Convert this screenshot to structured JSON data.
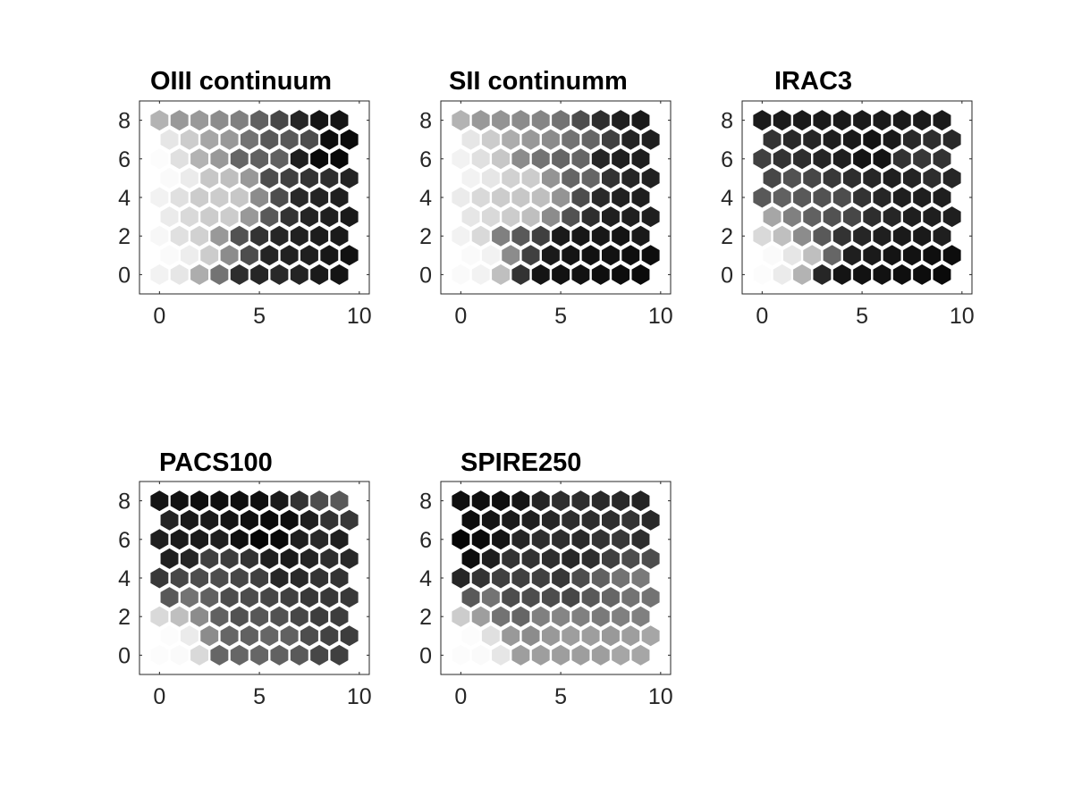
{
  "chart_data": [
    {
      "type": "heatmap",
      "title": "OIII continuum",
      "xlim": [
        -1,
        10.5
      ],
      "ylim": [
        -1,
        9
      ],
      "xticks": [
        0,
        5,
        10
      ],
      "yticks": [
        0,
        2,
        4,
        6,
        8
      ],
      "grid": "off",
      "value_scale": "gray level 0 (black) to 1 (white)",
      "hex_rows": [
        [
          0.95,
          0.9,
          0.68,
          0.45,
          0.18,
          0.15,
          0.16,
          0.14,
          0.1,
          0.08
        ],
        [
          0.98,
          0.93,
          0.8,
          0.55,
          0.3,
          0.14,
          0.13,
          0.12,
          0.09,
          0.07
        ],
        [
          0.97,
          0.88,
          0.82,
          0.6,
          0.32,
          0.2,
          0.15,
          0.13,
          0.11,
          0.1
        ],
        [
          0.92,
          0.85,
          0.8,
          0.8,
          0.6,
          0.35,
          0.2,
          0.14,
          0.12,
          0.1
        ],
        [
          0.95,
          0.88,
          0.8,
          0.8,
          0.78,
          0.55,
          0.3,
          0.16,
          0.14,
          0.12
        ],
        [
          0.98,
          0.92,
          0.78,
          0.75,
          0.6,
          0.3,
          0.25,
          0.2,
          0.18,
          0.14
        ],
        [
          0.99,
          0.88,
          0.7,
          0.6,
          0.4,
          0.38,
          0.38,
          0.12,
          0.04,
          0.03
        ],
        [
          0.9,
          0.8,
          0.65,
          0.6,
          0.45,
          0.35,
          0.35,
          0.3,
          0.05,
          0.04
        ],
        [
          0.7,
          0.6,
          0.6,
          0.55,
          0.5,
          0.38,
          0.28,
          0.15,
          0.08,
          0.08
        ]
      ]
    },
    {
      "type": "heatmap",
      "title": "SII continumm",
      "xlim": [
        -1,
        10.5
      ],
      "ylim": [
        -1,
        9
      ],
      "xticks": [
        0,
        5,
        10
      ],
      "yticks": [
        0,
        2,
        4,
        6,
        8
      ],
      "grid": "off",
      "value_scale": "gray level 0 (black) to 1 (white)",
      "hex_rows": [
        [
          0.98,
          0.95,
          0.75,
          0.2,
          0.08,
          0.07,
          0.07,
          0.06,
          0.05,
          0.04
        ],
        [
          0.98,
          0.95,
          0.55,
          0.25,
          0.1,
          0.08,
          0.07,
          0.07,
          0.06,
          0.05
        ],
        [
          0.95,
          0.85,
          0.5,
          0.35,
          0.25,
          0.1,
          0.09,
          0.09,
          0.08,
          0.1
        ],
        [
          0.9,
          0.85,
          0.8,
          0.75,
          0.55,
          0.32,
          0.18,
          0.12,
          0.12,
          0.12
        ],
        [
          0.92,
          0.85,
          0.8,
          0.78,
          0.75,
          0.58,
          0.3,
          0.16,
          0.13,
          0.12
        ],
        [
          0.95,
          0.9,
          0.82,
          0.8,
          0.58,
          0.4,
          0.4,
          0.2,
          0.15,
          0.13
        ],
        [
          0.95,
          0.88,
          0.78,
          0.55,
          0.45,
          0.4,
          0.4,
          0.15,
          0.12,
          0.12
        ],
        [
          0.9,
          0.8,
          0.68,
          0.6,
          0.55,
          0.45,
          0.4,
          0.25,
          0.14,
          0.12
        ],
        [
          0.7,
          0.6,
          0.58,
          0.55,
          0.52,
          0.45,
          0.3,
          0.18,
          0.12,
          0.1
        ]
      ]
    },
    {
      "type": "heatmap",
      "title": "IRAC3",
      "xlim": [
        -1,
        10.5
      ],
      "ylim": [
        -1,
        9
      ],
      "xticks": [
        0,
        5,
        10
      ],
      "yticks": [
        0,
        2,
        4,
        6,
        8
      ],
      "grid": "off",
      "value_scale": "gray level 0 (black) to 1 (white)",
      "hex_rows": [
        [
          0.99,
          0.92,
          0.7,
          0.15,
          0.08,
          0.07,
          0.07,
          0.06,
          0.05,
          0.04
        ],
        [
          0.98,
          0.9,
          0.75,
          0.4,
          0.12,
          0.1,
          0.08,
          0.07,
          0.06,
          0.05
        ],
        [
          0.85,
          0.75,
          0.55,
          0.35,
          0.2,
          0.15,
          0.12,
          0.1,
          0.1,
          0.12
        ],
        [
          0.65,
          0.5,
          0.38,
          0.32,
          0.28,
          0.18,
          0.15,
          0.12,
          0.12,
          0.12
        ],
        [
          0.35,
          0.38,
          0.35,
          0.32,
          0.3,
          0.2,
          0.15,
          0.12,
          0.12,
          0.12
        ],
        [
          0.28,
          0.32,
          0.28,
          0.22,
          0.18,
          0.15,
          0.12,
          0.14,
          0.18,
          0.15
        ],
        [
          0.25,
          0.2,
          0.18,
          0.15,
          0.12,
          0.08,
          0.08,
          0.2,
          0.22,
          0.2
        ],
        [
          0.2,
          0.16,
          0.15,
          0.12,
          0.1,
          0.08,
          0.1,
          0.16,
          0.18,
          0.16
        ],
        [
          0.1,
          0.1,
          0.1,
          0.1,
          0.1,
          0.1,
          0.1,
          0.1,
          0.1,
          0.1
        ]
      ]
    },
    {
      "type": "heatmap",
      "title": "PACS100",
      "xlim": [
        -1,
        10.5
      ],
      "ylim": [
        -1,
        9
      ],
      "xticks": [
        0,
        5,
        10
      ],
      "yticks": [
        0,
        2,
        4,
        6,
        8
      ],
      "grid": "off",
      "value_scale": "gray level 0 (black) to 1 (white)",
      "hex_rows": [
        [
          0.99,
          0.98,
          0.85,
          0.4,
          0.4,
          0.4,
          0.38,
          0.35,
          0.28,
          0.25
        ],
        [
          0.99,
          0.92,
          0.55,
          0.4,
          0.38,
          0.4,
          0.38,
          0.3,
          0.26,
          0.24
        ],
        [
          0.85,
          0.75,
          0.55,
          0.38,
          0.32,
          0.34,
          0.32,
          0.28,
          0.24,
          0.24
        ],
        [
          0.35,
          0.45,
          0.38,
          0.3,
          0.3,
          0.28,
          0.25,
          0.22,
          0.22,
          0.22
        ],
        [
          0.22,
          0.28,
          0.3,
          0.3,
          0.28,
          0.25,
          0.15,
          0.16,
          0.2,
          0.2
        ],
        [
          0.12,
          0.15,
          0.25,
          0.24,
          0.2,
          0.12,
          0.1,
          0.14,
          0.18,
          0.16
        ],
        [
          0.12,
          0.1,
          0.1,
          0.12,
          0.06,
          0.02,
          0.03,
          0.12,
          0.16,
          0.12
        ],
        [
          0.14,
          0.1,
          0.1,
          0.08,
          0.06,
          0.04,
          0.05,
          0.12,
          0.2,
          0.22
        ],
        [
          0.08,
          0.07,
          0.06,
          0.06,
          0.06,
          0.06,
          0.1,
          0.2,
          0.3,
          0.35
        ]
      ]
    },
    {
      "type": "heatmap",
      "title": "SPIRE250",
      "xlim": [
        -1,
        10.5
      ],
      "ylim": [
        -1,
        9
      ],
      "xticks": [
        0,
        5,
        10
      ],
      "yticks": [
        0,
        2,
        4,
        6,
        8
      ],
      "grid": "off",
      "value_scale": "gray level 0 (black) to 1 (white)",
      "hex_rows": [
        [
          0.99,
          0.98,
          0.9,
          0.62,
          0.62,
          0.62,
          0.62,
          0.62,
          0.65,
          0.65
        ],
        [
          0.99,
          0.88,
          0.6,
          0.55,
          0.6,
          0.62,
          0.62,
          0.6,
          0.62,
          0.65
        ],
        [
          0.8,
          0.62,
          0.45,
          0.4,
          0.5,
          0.52,
          0.5,
          0.48,
          0.5,
          0.5
        ],
        [
          0.35,
          0.45,
          0.3,
          0.3,
          0.3,
          0.28,
          0.35,
          0.4,
          0.45,
          0.45
        ],
        [
          0.15,
          0.2,
          0.25,
          0.25,
          0.25,
          0.22,
          0.3,
          0.38,
          0.45,
          0.48
        ],
        [
          0.05,
          0.12,
          0.2,
          0.2,
          0.18,
          0.16,
          0.18,
          0.25,
          0.3,
          0.3
        ],
        [
          0.02,
          0.04,
          0.08,
          0.15,
          0.18,
          0.18,
          0.16,
          0.2,
          0.22,
          0.18
        ],
        [
          0.05,
          0.08,
          0.1,
          0.12,
          0.15,
          0.18,
          0.18,
          0.18,
          0.2,
          0.16
        ],
        [
          0.06,
          0.06,
          0.06,
          0.08,
          0.14,
          0.18,
          0.18,
          0.16,
          0.16,
          0.14
        ]
      ]
    }
  ]
}
